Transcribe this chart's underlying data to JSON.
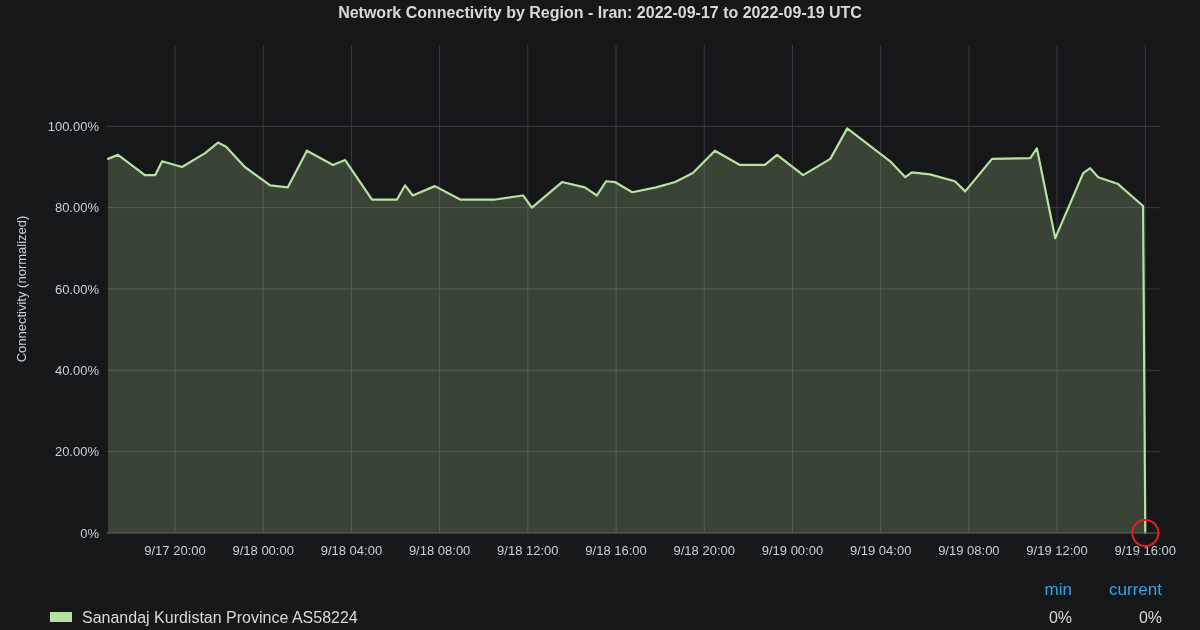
{
  "chart_data": {
    "type": "area",
    "title": "Network Connectivity by Region - Iran: 2022-09-17 to 2022-09-19 UTC",
    "ylabel": "Connectivity (normalized)",
    "x": [
      "2022-09-17T16:58",
      "2022-09-17T17:25",
      "2022-09-17T18:38",
      "2022-09-17T19:06",
      "2022-09-17T19:25",
      "2022-09-17T20:19",
      "2022-09-17T21:22",
      "2022-09-17T21:57",
      "2022-09-17T22:19",
      "2022-09-17T23:10",
      "2022-09-18T00:19",
      "2022-09-18T01:07",
      "2022-09-18T01:59",
      "2022-09-18T03:10",
      "2022-09-18T03:43",
      "2022-09-18T04:56",
      "2022-09-18T06:04",
      "2022-09-18T06:26",
      "2022-09-18T06:47",
      "2022-09-18T07:47",
      "2022-09-18T08:56",
      "2022-09-18T10:31",
      "2022-09-18T11:47",
      "2022-09-18T12:11",
      "2022-09-18T13:33",
      "2022-09-18T14:35",
      "2022-09-18T15:08",
      "2022-09-18T15:33",
      "2022-09-18T15:57",
      "2022-09-18T16:44",
      "2022-09-18T17:49",
      "2022-09-18T18:41",
      "2022-09-18T19:29",
      "2022-09-18T20:29",
      "2022-09-18T21:37",
      "2022-09-18T22:45",
      "2022-09-18T23:18",
      "2022-09-19T00:29",
      "2022-09-19T01:43",
      "2022-09-19T02:29",
      "2022-09-19T04:26",
      "2022-09-19T05:07",
      "2022-09-19T05:25",
      "2022-09-19T06:14",
      "2022-09-19T07:22",
      "2022-09-19T07:50",
      "2022-09-19T09:03",
      "2022-09-19T10:47",
      "2022-09-19T11:05",
      "2022-09-19T11:55",
      "2022-09-19T13:11",
      "2022-09-19T13:30",
      "2022-09-19T13:52",
      "2022-09-19T14:46",
      "2022-09-19T15:54",
      "2022-09-19T16:00"
    ],
    "series": [
      {
        "name": "Sanandaj Kurdistan Province AS58224",
        "color": "#b5e2a0",
        "values": [
          92,
          93,
          88,
          88,
          91.4,
          90,
          93.4,
          96,
          95,
          90,
          85.5,
          85,
          94,
          90.5,
          91.7,
          82,
          82,
          85.5,
          83,
          85.3,
          82,
          82,
          83,
          80,
          86.3,
          85,
          83,
          86.5,
          86.3,
          83.8,
          85,
          86.3,
          88.5,
          94,
          90.5,
          90.5,
          93,
          88,
          92,
          99.5,
          91.4,
          87.5,
          88.7,
          88.2,
          86.5,
          84,
          92,
          92.2,
          94.6,
          72.5,
          88.5,
          89.7,
          87.5,
          85.8,
          80.4,
          0
        ]
      }
    ],
    "xlim": [
      "2022-09-17T16:55",
      "2022-09-19T16:40"
    ],
    "xticks": [
      {
        "value": "2022-09-17T20:00",
        "label": "9/17 20:00"
      },
      {
        "value": "2022-09-18T00:00",
        "label": "9/18 00:00"
      },
      {
        "value": "2022-09-18T04:00",
        "label": "9/18 04:00"
      },
      {
        "value": "2022-09-18T08:00",
        "label": "9/18 08:00"
      },
      {
        "value": "2022-09-18T12:00",
        "label": "9/18 12:00"
      },
      {
        "value": "2022-09-18T16:00",
        "label": "9/18 16:00"
      },
      {
        "value": "2022-09-18T20:00",
        "label": "9/18 20:00"
      },
      {
        "value": "2022-09-19T00:00",
        "label": "9/19 00:00"
      },
      {
        "value": "2022-09-19T04:00",
        "label": "9/19 04:00"
      },
      {
        "value": "2022-09-19T08:00",
        "label": "9/19 08:00"
      },
      {
        "value": "2022-09-19T12:00",
        "label": "9/19 12:00"
      },
      {
        "value": "2022-09-19T16:00",
        "label": "9/19 16:00"
      }
    ],
    "ylim": [
      0,
      120
    ],
    "yticks": [
      {
        "value": 0,
        "label": "0%"
      },
      {
        "value": 20,
        "label": "20.00%"
      },
      {
        "value": 40,
        "label": "40.00%"
      },
      {
        "value": 60,
        "label": "60.00%"
      },
      {
        "value": 80,
        "label": "80.00%"
      },
      {
        "value": 100,
        "label": "100.00%"
      }
    ],
    "grid": true,
    "legend": "bottom",
    "annotations": [
      "min",
      "current",
      "0%",
      "0%"
    ]
  }
}
